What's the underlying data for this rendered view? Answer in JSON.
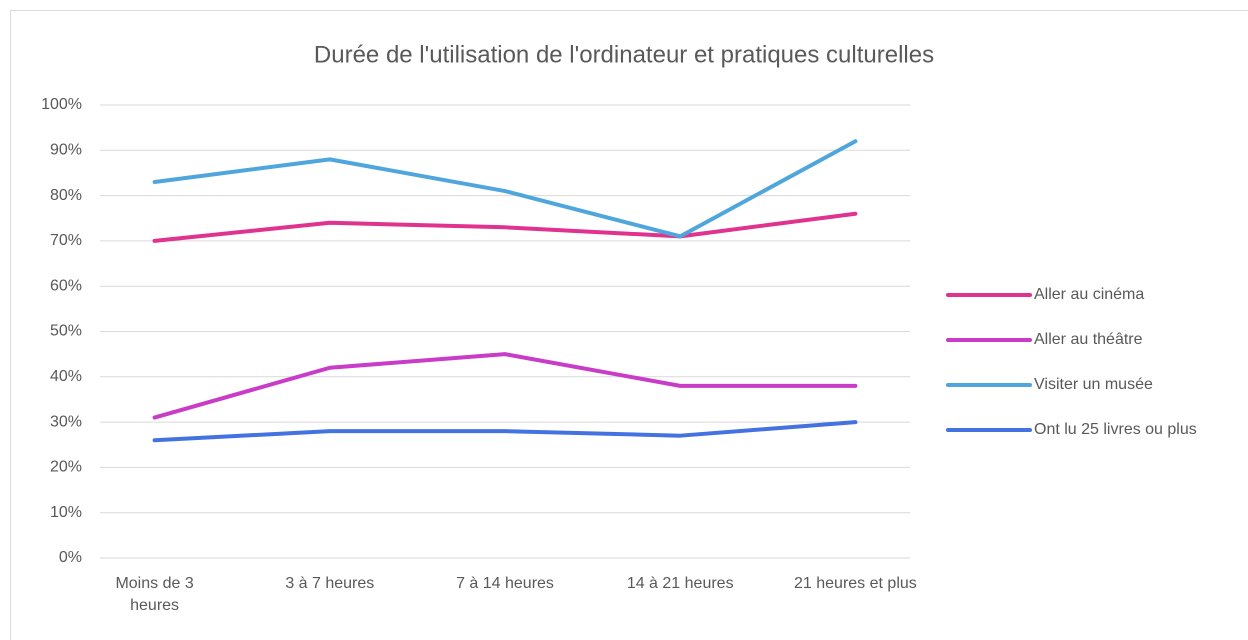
{
  "chart_data": {
    "type": "line",
    "title": "Durée de l'utilisation de l'ordinateur et pratiques culturelles",
    "categories": [
      "Moins de 3 heures",
      "3 à 7 heures",
      "7 à 14 heures",
      "14 à 21 heures",
      "21 heures et plus"
    ],
    "series": [
      {
        "name": "Aller au cinéma",
        "color": "#e0338f",
        "values": [
          70,
          74,
          73,
          71,
          76
        ]
      },
      {
        "name": "Aller au théâtre",
        "color": "#c83cc8",
        "values": [
          31,
          42,
          45,
          38,
          38
        ]
      },
      {
        "name": "Visiter un musée",
        "color": "#4ea6dc",
        "values": [
          83,
          88,
          81,
          71,
          92
        ]
      },
      {
        "name": "Ont lu 25 livres ou plus",
        "color": "#4472e0",
        "values": [
          26,
          28,
          28,
          27,
          30
        ]
      }
    ],
    "ylim": [
      0,
      100
    ],
    "yticks": [
      {
        "value": 0,
        "label": "0%"
      },
      {
        "value": 10,
        "label": "10%"
      },
      {
        "value": 20,
        "label": "20%"
      },
      {
        "value": 30,
        "label": "30%"
      },
      {
        "value": 40,
        "label": "40%"
      },
      {
        "value": 50,
        "label": "50%"
      },
      {
        "value": 60,
        "label": "60%"
      },
      {
        "value": 70,
        "label": "70%"
      },
      {
        "value": 80,
        "label": "80%"
      },
      {
        "value": 90,
        "label": "90%"
      },
      {
        "value": 100,
        "label": "100%"
      }
    ],
    "grid": true,
    "legend": "right"
  }
}
